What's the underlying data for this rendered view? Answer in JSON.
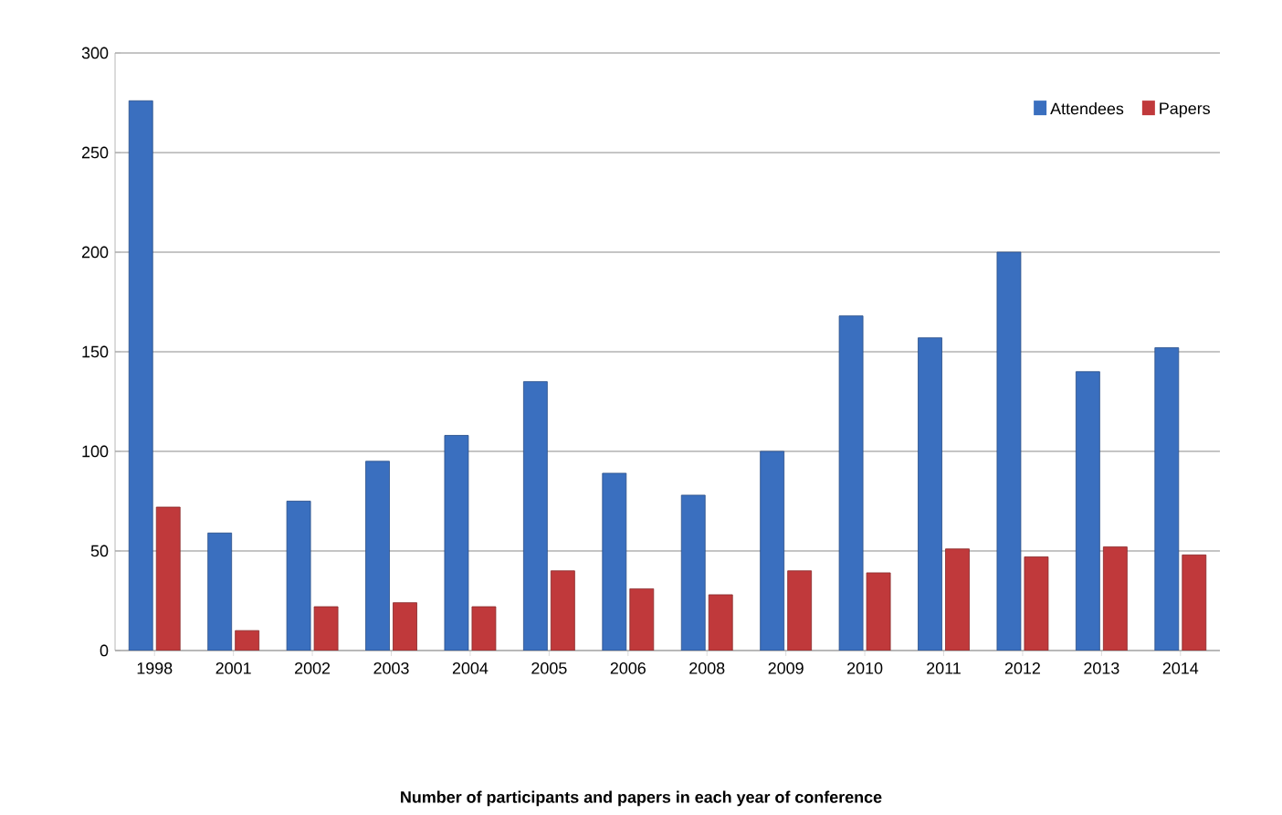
{
  "chart_data": {
    "type": "bar",
    "title": "Number of participants and papers in each year of conference",
    "categories": [
      "1998",
      "2001",
      "2002",
      "2003",
      "2004",
      "2005",
      "2006",
      "2008",
      "2009",
      "2010",
      "2011",
      "2012",
      "2013",
      "2014"
    ],
    "series": [
      {
        "name": "Attendees",
        "color": "#3a6fbf",
        "values": [
          276,
          59,
          75,
          95,
          108,
          135,
          89,
          78,
          100,
          168,
          157,
          200,
          140,
          152
        ]
      },
      {
        "name": "Papers",
        "color": "#c0393b",
        "values": [
          72,
          10,
          22,
          24,
          22,
          40,
          31,
          28,
          40,
          39,
          51,
          47,
          52,
          48
        ]
      }
    ],
    "ylim": [
      0,
      300
    ],
    "yticks": [
      0,
      50,
      100,
      150,
      200,
      250,
      300
    ],
    "grid": "y",
    "legend": "top right"
  }
}
